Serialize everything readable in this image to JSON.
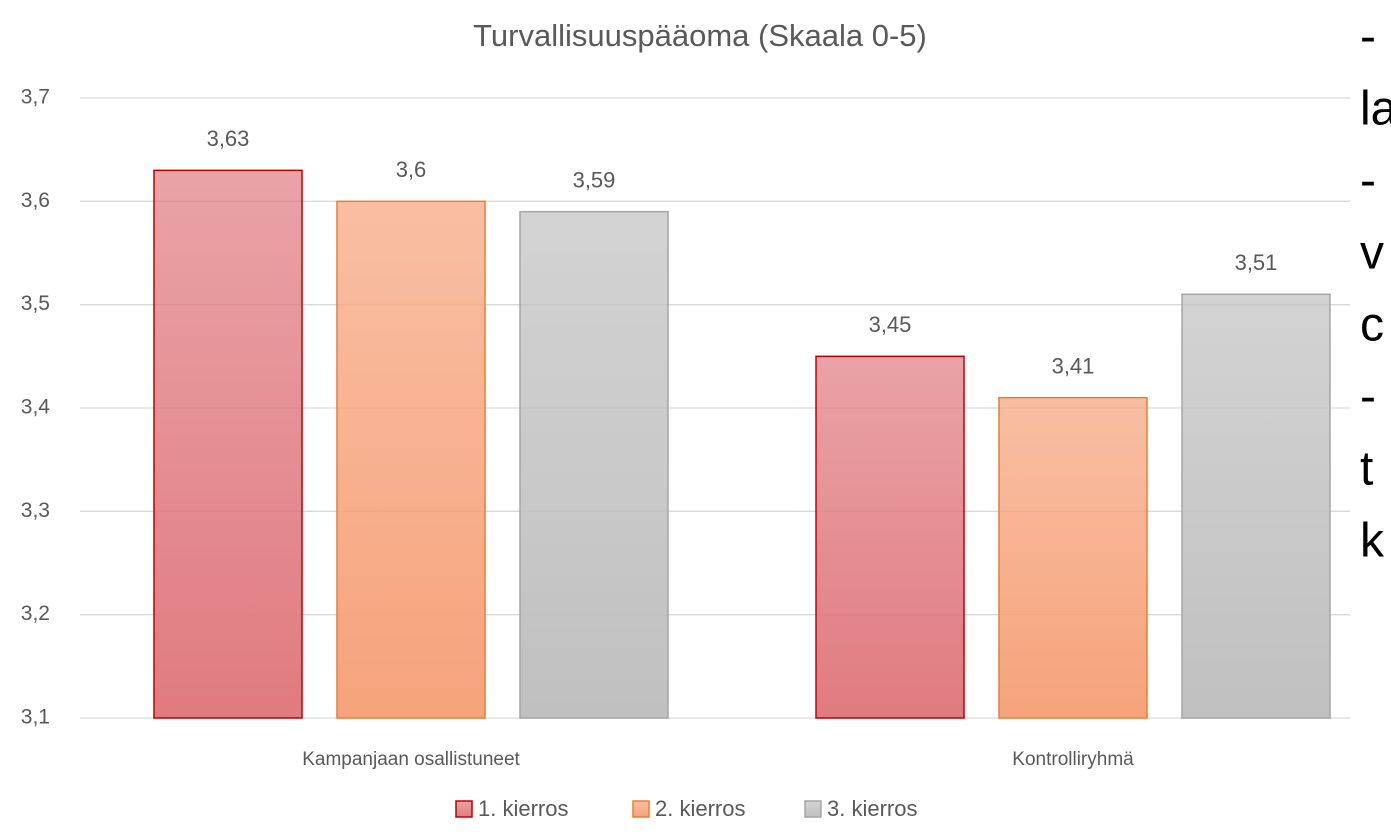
{
  "chart_data": {
    "type": "bar",
    "title": "Turvallisuuspääoma (Skaala 0-5)",
    "categories": [
      "Kampanjaan osallistuneet",
      "Kontrolliryhmä"
    ],
    "series": [
      {
        "name": "1. kierros",
        "color": "#e07b80",
        "border": "#c00000",
        "values": [
          3.63,
          3.45
        ],
        "value_labels": [
          "3,63",
          "3,45"
        ]
      },
      {
        "name": "2. kierros",
        "color": "#f6a37b",
        "border": "#ed7d31",
        "values": [
          3.6,
          3.41
        ],
        "value_labels": [
          "3,6",
          "3,41"
        ]
      },
      {
        "name": "3. kierros",
        "color": "#c0c0c0",
        "border": "#a5a5a5",
        "values": [
          3.59,
          3.51
        ],
        "value_labels": [
          "3,59",
          "3,51"
        ]
      }
    ],
    "ylim": [
      3.1,
      3.7
    ],
    "yticks": [
      {
        "value": 3.1,
        "label": "3,1"
      },
      {
        "value": 3.2,
        "label": "3,2"
      },
      {
        "value": 3.3,
        "label": "3,3"
      },
      {
        "value": 3.4,
        "label": "3,4"
      },
      {
        "value": 3.5,
        "label": "3,5"
      },
      {
        "value": 3.6,
        "label": "3,6"
      },
      {
        "value": 3.7,
        "label": "3,7"
      }
    ],
    "grid": true,
    "legend": "bottom"
  },
  "side_text": [
    "-",
    "la",
    "-",
    "v",
    "c",
    "-",
    "t",
    "k"
  ]
}
